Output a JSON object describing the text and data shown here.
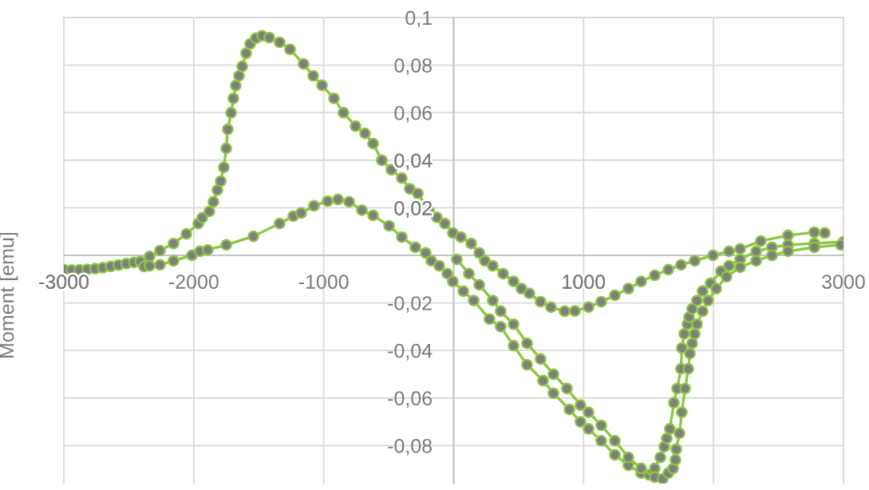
{
  "chart_data": {
    "type": "line",
    "ylabel": "Moment [emu]",
    "xlim": [
      -3000,
      3000
    ],
    "xticks": [
      -3000,
      -2000,
      -1000,
      {
        "value": 0,
        "label": null
      },
      1000,
      {
        "value": 2000,
        "label": null
      },
      3000
    ],
    "ylim": [
      -0.096,
      0.1
    ],
    "yticks": [
      {
        "value": 0.1,
        "label": "0,1"
      },
      {
        "value": 0.08,
        "label": "0,08"
      },
      {
        "value": 0.06,
        "label": "0,06"
      },
      {
        "value": 0.04,
        "label": "0,04"
      },
      {
        "value": 0.02,
        "label": "0,02"
      },
      {
        "value": 0,
        "label": null
      },
      {
        "value": -0.02,
        "label": "-0,02"
      },
      {
        "value": -0.04,
        "label": "-0,04"
      },
      {
        "value": -0.06,
        "label": "-0,06"
      },
      {
        "value": -0.08,
        "label": "-0,08"
      }
    ],
    "grid": true,
    "marker": "circle",
    "line_style": "solid",
    "series": [
      {
        "color": "#8dc641",
        "x": [
          -3000,
          -2940,
          -2880,
          -2820,
          -2760,
          -2700,
          -2640,
          -2580,
          -2520,
          -2460,
          -2413,
          -2340,
          -2260,
          -2156,
          -2057,
          -1965,
          -1935,
          -1880,
          -1849,
          -1818,
          -1793,
          -1769,
          -1750,
          -1738,
          -1713,
          -1695,
          -1677,
          -1652,
          -1627,
          -1597,
          -1566,
          -1523,
          -1474,
          -1419,
          -1339,
          -1259,
          -1155,
          -1081,
          -1013,
          -921,
          -848,
          -755,
          -682,
          -620,
          -553,
          -479,
          -399,
          -338,
          -276,
          -190,
          -129,
          -68,
          -6,
          55,
          135,
          197,
          240,
          301,
          381,
          461,
          522,
          583,
          669,
          749,
          854,
          933,
          1038,
          1136,
          1241,
          1345,
          1443,
          1548,
          1652,
          1750,
          1855,
          1996,
          2119,
          2205,
          2364,
          2573,
          2776,
          2856
        ],
        "values": [
          -0.006,
          -0.0062,
          -0.0061,
          -0.0059,
          -0.0056,
          -0.0052,
          -0.0047,
          -0.0041,
          -0.0035,
          -0.003,
          -0.0026,
          -0.0005,
          0.002,
          0.005,
          0.009,
          0.0134,
          0.0158,
          0.0185,
          0.0225,
          0.0275,
          0.0312,
          0.037,
          0.045,
          0.053,
          0.06,
          0.066,
          0.0714,
          0.0755,
          0.0795,
          0.085,
          0.0889,
          0.0913,
          0.0923,
          0.0916,
          0.0896,
          0.0866,
          0.0805,
          0.0755,
          0.0715,
          0.066,
          0.06,
          0.0543,
          0.0513,
          0.047,
          0.04,
          0.036,
          0.0325,
          0.028,
          0.026,
          0.019,
          0.016,
          0.0134,
          0.0094,
          0.0077,
          0.005,
          0.001,
          -0.0023,
          -0.0044,
          -0.0077,
          -0.011,
          -0.014,
          -0.016,
          -0.0195,
          -0.0218,
          -0.0235,
          -0.0234,
          -0.0218,
          -0.0195,
          -0.0168,
          -0.014,
          -0.011,
          -0.0084,
          -0.006,
          -0.004,
          -0.0023,
          0.0,
          0.0017,
          0.0027,
          0.006,
          0.0084,
          0.0097,
          0.0094
        ]
      },
      {
        "color": "#8dc641",
        "x": [
          -2383,
          -2340,
          -2260,
          -2156,
          -2014,
          -1953,
          -1892,
          -1750,
          -1541,
          -1339,
          -1234,
          -1173,
          -1075,
          -970,
          -890,
          -804,
          -706,
          -620,
          -497,
          -399,
          -295,
          -215,
          -172,
          -111,
          -49,
          -6,
          74,
          154,
          276,
          362,
          461,
          565,
          688,
          768,
          891,
          976,
          1038,
          1136,
          1241,
          1345,
          1443,
          1505,
          1548,
          1591,
          1621,
          1640,
          1664,
          1695,
          1720,
          1750,
          1756,
          1775,
          1799,
          1812,
          1836,
          1873,
          1916,
          1978,
          2057,
          2119,
          2205,
          2328,
          2450,
          2573,
          2776,
          3000
        ],
        "values": [
          -0.0047,
          -0.0044,
          -0.004,
          -0.0023,
          0.0,
          0.0017,
          0.0023,
          0.0044,
          0.008,
          0.0134,
          0.0165,
          0.0178,
          0.0208,
          0.0228,
          0.0235,
          0.0225,
          0.019,
          0.0168,
          0.0124,
          0.0077,
          0.0034,
          0.001,
          -0.0023,
          -0.0044,
          -0.0077,
          -0.011,
          -0.0151,
          -0.019,
          -0.0268,
          -0.03,
          -0.038,
          -0.046,
          -0.0527,
          -0.058,
          -0.0648,
          -0.07,
          -0.073,
          -0.078,
          -0.0839,
          -0.0883,
          -0.0916,
          -0.0923,
          -0.0896,
          -0.085,
          -0.0805,
          -0.077,
          -0.073,
          -0.062,
          -0.056,
          -0.0477,
          -0.039,
          -0.033,
          -0.029,
          -0.026,
          -0.0225,
          -0.019,
          -0.015,
          -0.0117,
          -0.0067,
          -0.0044,
          -0.0017,
          0.0017,
          0.0034,
          0.0044,
          0.005,
          0.0057
        ]
      },
      {
        "color": "#8dc641",
        "x": [
          25,
          117,
          197,
          301,
          362,
          461,
          565,
          669,
          768,
          872,
          976,
          1038,
          1136,
          1241,
          1345,
          1443,
          1548,
          1609,
          1652,
          1689,
          1707,
          1713,
          1738,
          1756,
          1781,
          1806,
          1818,
          1836,
          1855,
          1873,
          1916,
          1959,
          2020,
          2100,
          2205,
          2328,
          2450,
          2573,
          2776,
          2979
        ],
        "values": [
          -0.0017,
          -0.0077,
          -0.0124,
          -0.019,
          -0.0235,
          -0.029,
          -0.037,
          -0.0436,
          -0.05,
          -0.056,
          -0.063,
          -0.066,
          -0.0715,
          -0.078,
          -0.085,
          -0.0896,
          -0.0933,
          -0.094,
          -0.0916,
          -0.0896,
          -0.086,
          -0.0815,
          -0.0748,
          -0.066,
          -0.056,
          -0.0477,
          -0.0413,
          -0.037,
          -0.033,
          -0.029,
          -0.0235,
          -0.019,
          -0.014,
          -0.009,
          -0.005,
          -0.0023,
          0.0,
          0.0017,
          0.0034,
          0.0044
        ]
      }
    ]
  }
}
